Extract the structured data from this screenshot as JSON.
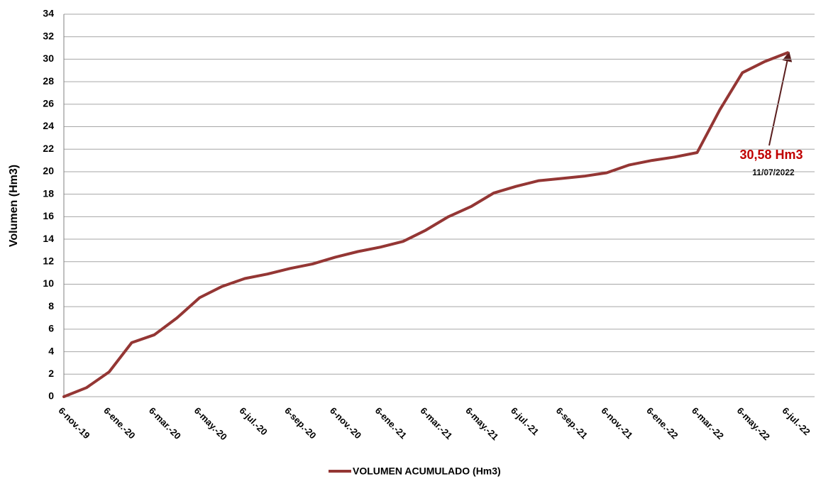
{
  "chart_data": {
    "type": "line",
    "y_label": "Volumen (Hm3)",
    "categories": [
      "6-nov.-19",
      null,
      "6-ene.-20",
      null,
      "6-mar.-20",
      null,
      "6-may.-20",
      null,
      "6-jul.-20",
      null,
      "6-sep.-20",
      null,
      "6-nov.-20",
      null,
      "6-ene.-21",
      null,
      "6-mar.-21",
      null,
      "6-may.-21",
      null,
      "6-jul.-21",
      null,
      "6-sep.-21",
      null,
      "6-nov.-21",
      null,
      "6-ene.-22",
      null,
      "6-mar.-22",
      null,
      "6-may.-22",
      null,
      "6-jul.-22"
    ],
    "series": [
      {
        "name": "VOLUMEN ACUMULADO (Hm3)",
        "color": "#943634",
        "values": [
          0,
          0.8,
          2.2,
          4.8,
          5.5,
          7.0,
          8.8,
          9.8,
          10.5,
          10.9,
          11.4,
          11.8,
          12.4,
          12.9,
          13.3,
          13.8,
          14.8,
          16.0,
          16.9,
          18.1,
          18.7,
          19.2,
          19.4,
          19.6,
          19.9,
          20.6,
          21.0,
          21.3,
          21.7,
          25.5,
          28.8,
          29.8,
          30.58
        ]
      }
    ],
    "ylim": [
      0,
      34
    ],
    "yticks": [
      0,
      2,
      4,
      6,
      8,
      10,
      12,
      14,
      16,
      18,
      20,
      22,
      24,
      26,
      28,
      30,
      32,
      34
    ],
    "grid": true,
    "legend": "bottom",
    "annotation": "30,58 Hm3",
    "annotation_date": "11/07/2022"
  }
}
